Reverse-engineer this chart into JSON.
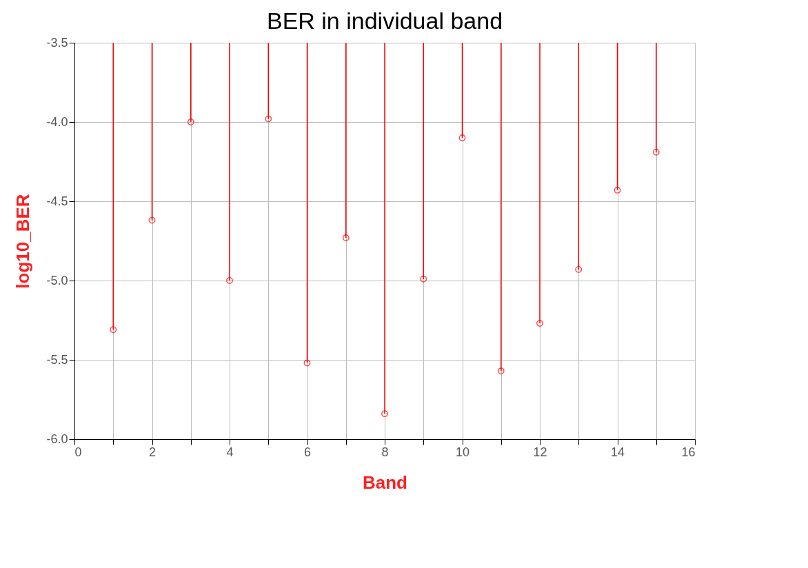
{
  "chart_data": {
    "type": "lollipop",
    "title": "BER in individual band",
    "xlabel": "Band",
    "ylabel": "log10_BER",
    "x": [
      1,
      2,
      3,
      4,
      5,
      6,
      7,
      8,
      9,
      10,
      11,
      12,
      13,
      14,
      15
    ],
    "series": [
      {
        "color": "#ff0000",
        "values": [
          -5.31,
          -4.62,
          -4.0,
          -5.0,
          -3.98,
          -5.52,
          -4.73,
          -5.84,
          -4.99,
          -4.1,
          -5.57,
          -5.27,
          -4.93,
          -4.43,
          -4.19
        ]
      }
    ],
    "xlim": [
      0,
      16
    ],
    "xticks": [
      0,
      {
        "value": 1,
        "label": null
      },
      2,
      {
        "value": 3,
        "label": null
      },
      4,
      {
        "value": 5,
        "label": null
      },
      6,
      {
        "value": 7,
        "label": null
      },
      8,
      {
        "value": 9,
        "label": null
      },
      10,
      {
        "value": 11,
        "label": null
      },
      12,
      {
        "value": 13,
        "label": null
      },
      14,
      {
        "value": 15,
        "label": null
      },
      16
    ],
    "ylim": [
      -6.0,
      -3.5
    ],
    "yticks": [
      {
        "value": -6.0,
        "label": "-6.0"
      },
      {
        "value": -5.5,
        "label": "-5.5"
      },
      {
        "value": -5.0,
        "label": "-5.0"
      },
      {
        "value": -4.5,
        "label": "-4.5"
      },
      {
        "value": -4.0,
        "label": "-4.0"
      },
      {
        "value": -3.5,
        "label": "-3.5"
      }
    ],
    "grid": true,
    "marker": "circle"
  }
}
